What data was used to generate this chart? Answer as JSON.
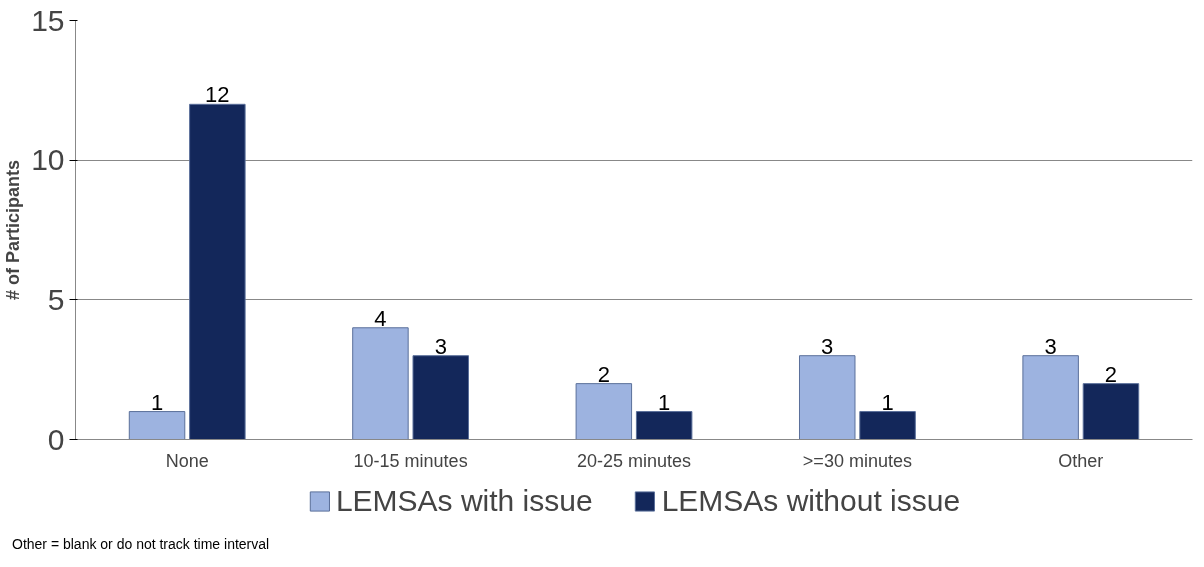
{
  "chart_data": {
    "type": "bar",
    "ylabel": "# of Participants",
    "categories": [
      "None",
      "10-15 minutes",
      "20-25 minutes",
      ">=30 minutes",
      "Other"
    ],
    "series": [
      {
        "name": "LEMSAs with issue",
        "color": "#9db3e0",
        "values": [
          1,
          4,
          2,
          3,
          3
        ]
      },
      {
        "name": "LEMSAs without issue",
        "color": "#13275a",
        "values": [
          12,
          3,
          1,
          1,
          2
        ]
      }
    ],
    "ylim": [
      0,
      15
    ],
    "yticks": [
      0,
      5,
      10,
      15
    ],
    "grid": "y",
    "legend": "bottom",
    "data_labels": true,
    "annotations": [
      "Other = blank or do not track time interval"
    ]
  }
}
